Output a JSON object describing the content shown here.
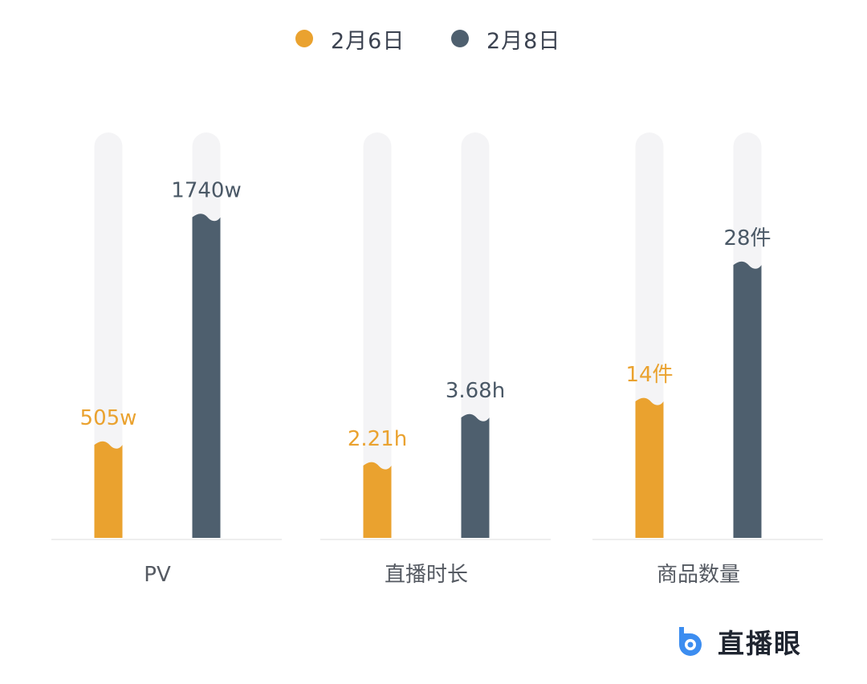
{
  "legend": [
    {
      "label": "2月6日",
      "color": "#EAA22F"
    },
    {
      "label": "2月8日",
      "color": "#4E5F6E"
    }
  ],
  "brand": {
    "name": "直播眼",
    "icon": "brand-b-logo-icon",
    "color": "#3C8DF0"
  },
  "chart_data": [
    {
      "type": "bar",
      "category": "PV",
      "series": [
        {
          "name": "2月6日",
          "value": 505,
          "label": "505w"
        },
        {
          "name": "2月8日",
          "value": 1740,
          "label": "1740w"
        }
      ],
      "ylim": [
        0,
        2200
      ]
    },
    {
      "type": "bar",
      "category": "直播时长",
      "series": [
        {
          "name": "2月6日",
          "value": 2.21,
          "label": "2.21h"
        },
        {
          "name": "2月8日",
          "value": 3.68,
          "label": "3.68h"
        }
      ],
      "ylim": [
        0,
        12.4
      ]
    },
    {
      "type": "bar",
      "category": "商品数量",
      "series": [
        {
          "name": "2月6日",
          "value": 14,
          "label": "14件"
        },
        {
          "name": "2月8日",
          "value": 28,
          "label": "28件"
        }
      ],
      "ylim": [
        0,
        41.6
      ]
    }
  ]
}
